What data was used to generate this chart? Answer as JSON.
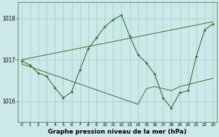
{
  "title": "Graphe pression niveau de la mer (hPa)",
  "bg_color": "#cce8e8",
  "grid_color": "#99cccc",
  "line_color": "#2d6e2d",
  "hours": [
    0,
    1,
    2,
    3,
    4,
    5,
    6,
    7,
    8,
    9,
    10,
    11,
    12,
    13,
    14,
    15,
    16,
    17,
    18,
    19,
    20,
    21,
    22,
    23
  ],
  "main_line": [
    1016.97,
    1016.87,
    1016.68,
    1016.6,
    1016.32,
    1016.08,
    1016.22,
    1016.75,
    1017.27,
    1017.53,
    1017.8,
    1017.97,
    1018.08,
    1017.57,
    1017.12,
    1016.92,
    1016.65,
    1016.08,
    1015.83,
    1016.2,
    1016.25,
    1017.08,
    1017.72,
    1017.87
  ],
  "trend_up": [
    1017.0,
    1017.04,
    1017.08,
    1017.12,
    1017.16,
    1017.2,
    1017.24,
    1017.28,
    1017.32,
    1017.36,
    1017.4,
    1017.44,
    1017.48,
    1017.52,
    1017.56,
    1017.6,
    1017.64,
    1017.68,
    1017.72,
    1017.76,
    1017.8,
    1017.84,
    1017.88,
    1017.92
  ],
  "trend_down": [
    1016.9,
    1016.83,
    1016.76,
    1016.69,
    1016.62,
    1016.55,
    1016.48,
    1016.41,
    1016.34,
    1016.27,
    1016.2,
    1016.13,
    1016.06,
    1015.99,
    1015.92,
    1016.3,
    1016.35,
    1016.3,
    1016.25,
    1016.35,
    1016.4,
    1016.45,
    1016.5,
    1016.55
  ],
  "ylim_min": 1015.5,
  "ylim_max": 1018.4,
  "yticks": [
    1016,
    1017,
    1018
  ]
}
